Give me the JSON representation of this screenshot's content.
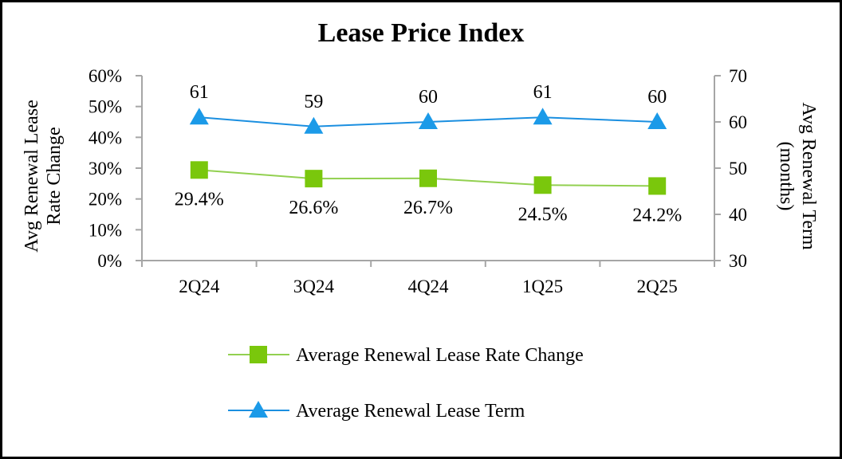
{
  "chart_data": {
    "type": "line",
    "title": "Lease Price Index",
    "categories": [
      "2Q24",
      "3Q24",
      "4Q24",
      "1Q25",
      "2Q25"
    ],
    "series": [
      {
        "name": "Average Renewal Lease Rate Change",
        "axis": "left",
        "values": [
          29.4,
          26.6,
          26.7,
          24.5,
          24.2
        ],
        "labels": [
          "29.4%",
          "26.6%",
          "26.7%",
          "24.5%",
          "24.2%"
        ],
        "marker": "square",
        "label_position": "below",
        "color": "#92D050",
        "marker_color": "#7AC70C"
      },
      {
        "name": "Average Renewal Lease Term",
        "axis": "right",
        "values": [
          61,
          59,
          60,
          61,
          60
        ],
        "labels": [
          "61",
          "59",
          "60",
          "61",
          "60"
        ],
        "marker": "triangle",
        "label_position": "above",
        "color": "#1B8FE0",
        "marker_color": "#1B9AE8"
      }
    ],
    "y_left": {
      "label_lines": [
        "Avg Renewal Lease",
        "Rate Change"
      ],
      "ylim": [
        0,
        60
      ],
      "ticks": [
        0,
        10,
        20,
        30,
        40,
        50,
        60
      ],
      "tick_labels": [
        "0%",
        "10%",
        "20%",
        "30%",
        "40%",
        "50%",
        "60%"
      ]
    },
    "y_right": {
      "label_lines": [
        "Avg Renewal Term",
        "(months)"
      ],
      "ylim": [
        30,
        70
      ],
      "ticks": [
        30,
        40,
        50,
        60,
        70
      ],
      "tick_labels": [
        "30",
        "40",
        "50",
        "60",
        "70"
      ]
    },
    "legend_position": "bottom",
    "grid": false,
    "axis_color": "#A6A6A6"
  }
}
